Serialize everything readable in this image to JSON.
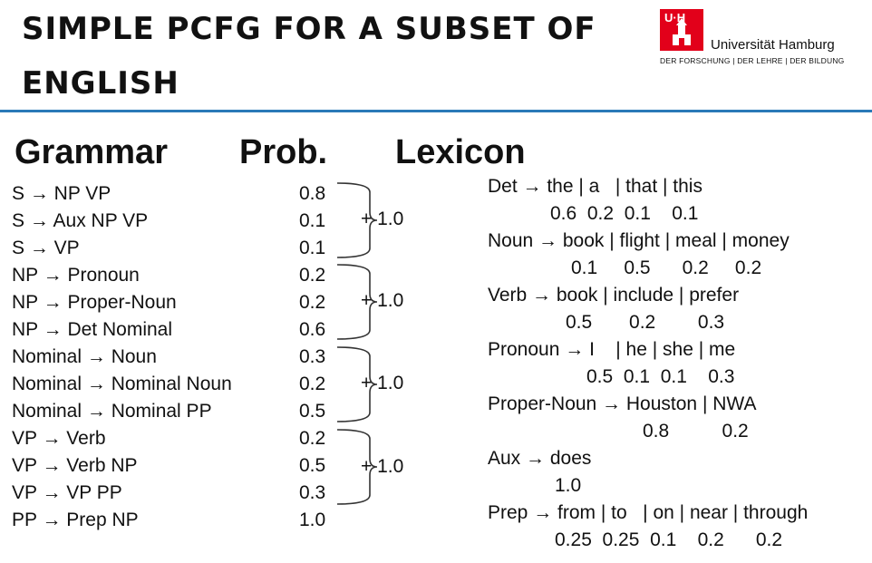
{
  "title": "SIMPLE PCFG FOR A SUBSET OF ENGLISH",
  "logo": {
    "badge": "UHH",
    "name": "Universität Hamburg",
    "tagline": "DER FORSCHUNG | DER LEHRE | DER BILDUNG",
    "color": "#e2001a"
  },
  "accent_color": "#2a7ab8",
  "headers": {
    "grammar": "Grammar",
    "prob": "Prob.",
    "lexicon": "Lexicon"
  },
  "rules": [
    {
      "rule": "S → NP VP",
      "prob": "0.8"
    },
    {
      "rule": "S → Aux NP VP",
      "prob": "0.1"
    },
    {
      "rule": "S → VP",
      "prob": "0.1"
    },
    {
      "rule": "NP → Pronoun",
      "prob": "0.2"
    },
    {
      "rule": "NP → Proper-Noun",
      "prob": "0.2"
    },
    {
      "rule": "NP → Det Nominal",
      "prob": "0.6"
    },
    {
      "rule": "Nominal → Noun",
      "prob": "0.3"
    },
    {
      "rule": "Nominal → Nominal Noun",
      "prob": "0.2"
    },
    {
      "rule": "Nominal → Nominal PP",
      "prob": "0.5"
    },
    {
      "rule": "VP → Verb",
      "prob": "0.2"
    },
    {
      "rule": "VP → Verb NP",
      "prob": "0.5"
    },
    {
      "rule": "VP → VP PP",
      "prob": "0.3"
    },
    {
      "rule": "PP → Prep NP",
      "prob": "1.0"
    }
  ],
  "group_sums": [
    "+ 1.0",
    "+ 1.0",
    "+ 1.0",
    "+ 1.0"
  ],
  "lexicon": [
    {
      "rule": "Det → the | a   | that | this",
      "probs": "0.6  0.2  0.1    0.1"
    },
    {
      "rule": "Noun → book | flight | meal | money",
      "probs": "0.1     0.5      0.2     0.2"
    },
    {
      "rule": "Verb → book | include | prefer",
      "probs": "0.5       0.2        0.3"
    },
    {
      "rule": "Pronoun → I    | he | she | me",
      "probs": "0.5  0.1  0.1    0.3"
    },
    {
      "rule": "Proper-Noun → Houston | NWA",
      "probs": "0.8          0.2"
    },
    {
      "rule": "Aux → does",
      "probs": "1.0"
    },
    {
      "rule": "Prep → from | to   | on | near | through",
      "probs": "0.25  0.25  0.1    0.2      0.2"
    }
  ]
}
